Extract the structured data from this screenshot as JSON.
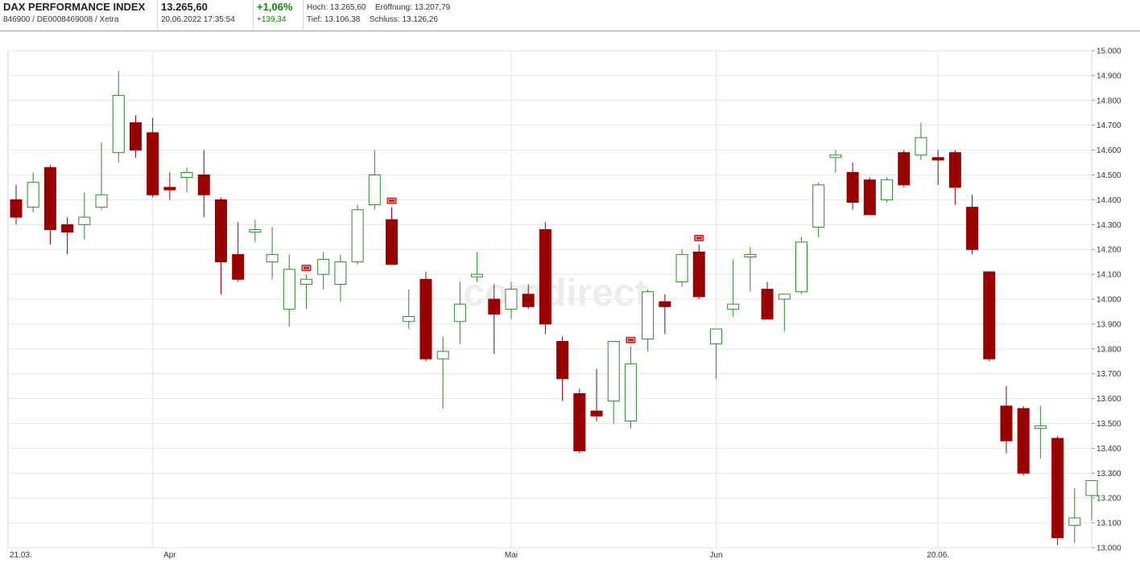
{
  "header": {
    "title": "DAX PERFORMANCE INDEX",
    "identifier": "846900 / DE0008469008 / Xetra",
    "price": "13.265,60",
    "datetime": "20.06.2022 17:35:54",
    "change_pct": "+1,06%",
    "change_abs": "+139,34",
    "high_label": "Hoch:",
    "high_value": "13.265,60",
    "open_label": "Eröffnung:",
    "open_value": "13.207,79",
    "low_label": "Tief:",
    "low_value": "13.106,38",
    "close_label": "Schluss:",
    "close_value": "13.126,26"
  },
  "watermark": "comdirect",
  "chart_data": {
    "type": "candlestick",
    "ylim": [
      13000,
      15000
    ],
    "y_ticks": [
      "13.000",
      "13.100",
      "13.200",
      "13.300",
      "13.400",
      "13.500",
      "13.600",
      "13.700",
      "13.800",
      "13.900",
      "14.000",
      "14.100",
      "14.200",
      "14.300",
      "14.400",
      "14.500",
      "14.600",
      "14.700",
      "14.800",
      "14.900",
      "15.000"
    ],
    "x_ticks": [
      {
        "label": "21.03.",
        "index": 0
      },
      {
        "label": "Apr",
        "index": 9
      },
      {
        "label": "Mai",
        "index": 29
      },
      {
        "label": "Jun",
        "index": 41
      },
      {
        "label": "20.06.",
        "index": 54
      }
    ],
    "grid": true,
    "up_color": "#2a8a2a",
    "down_color": "#990000",
    "event_marker_color": "#cc2222",
    "event_indices": [
      17,
      22,
      36,
      40
    ],
    "candles": [
      {
        "o": 14400,
        "h": 14460,
        "l": 14300,
        "c": 14330
      },
      {
        "o": 14370,
        "h": 14510,
        "l": 14350,
        "c": 14470
      },
      {
        "o": 14530,
        "h": 14540,
        "l": 14220,
        "c": 14280
      },
      {
        "o": 14300,
        "h": 14330,
        "l": 14180,
        "c": 14270
      },
      {
        "o": 14300,
        "h": 14430,
        "l": 14240,
        "c": 14330
      },
      {
        "o": 14370,
        "h": 14630,
        "l": 14360,
        "c": 14420
      },
      {
        "o": 14590,
        "h": 14920,
        "l": 14550,
        "c": 14820
      },
      {
        "o": 14710,
        "h": 14740,
        "l": 14570,
        "c": 14600
      },
      {
        "o": 14670,
        "h": 14730,
        "l": 14410,
        "c": 14420
      },
      {
        "o": 14450,
        "h": 14510,
        "l": 14400,
        "c": 14440
      },
      {
        "o": 14490,
        "h": 14530,
        "l": 14430,
        "c": 14510
      },
      {
        "o": 14500,
        "h": 14600,
        "l": 14330,
        "c": 14420
      },
      {
        "o": 14400,
        "h": 14410,
        "l": 14020,
        "c": 14150
      },
      {
        "o": 14180,
        "h": 14310,
        "l": 14070,
        "c": 14080
      },
      {
        "o": 14270,
        "h": 14320,
        "l": 14230,
        "c": 14280
      },
      {
        "o": 14150,
        "h": 14290,
        "l": 14080,
        "c": 14180
      },
      {
        "o": 13960,
        "h": 14180,
        "l": 13890,
        "c": 14120
      },
      {
        "o": 14060,
        "h": 14100,
        "l": 13960,
        "c": 14080
      },
      {
        "o": 14100,
        "h": 14190,
        "l": 14040,
        "c": 14160
      },
      {
        "o": 14060,
        "h": 14180,
        "l": 13990,
        "c": 14150
      },
      {
        "o": 14150,
        "h": 14380,
        "l": 14140,
        "c": 14360
      },
      {
        "o": 14380,
        "h": 14600,
        "l": 14360,
        "c": 14500
      },
      {
        "o": 14320,
        "h": 14370,
        "l": 14140,
        "c": 14140
      },
      {
        "o": 13910,
        "h": 14040,
        "l": 13880,
        "c": 13930
      },
      {
        "o": 14080,
        "h": 14110,
        "l": 13750,
        "c": 13760
      },
      {
        "o": 13760,
        "h": 13850,
        "l": 13560,
        "c": 13790
      },
      {
        "o": 13910,
        "h": 14070,
        "l": 13820,
        "c": 13980
      },
      {
        "o": 14090,
        "h": 14190,
        "l": 14070,
        "c": 14100
      },
      {
        "o": 14000,
        "h": 14060,
        "l": 13780,
        "c": 13940
      },
      {
        "o": 13960,
        "h": 14070,
        "l": 13920,
        "c": 14040
      },
      {
        "o": 14020,
        "h": 14060,
        "l": 13960,
        "c": 13970
      },
      {
        "o": 14280,
        "h": 14310,
        "l": 13860,
        "c": 13900
      },
      {
        "o": 13830,
        "h": 13850,
        "l": 13590,
        "c": 13680
      },
      {
        "o": 13620,
        "h": 13640,
        "l": 13380,
        "c": 13390
      },
      {
        "o": 13550,
        "h": 13720,
        "l": 13510,
        "c": 13530
      },
      {
        "o": 13590,
        "h": 13830,
        "l": 13500,
        "c": 13830
      },
      {
        "o": 13510,
        "h": 13810,
        "l": 13480,
        "c": 13740
      },
      {
        "o": 13840,
        "h": 14040,
        "l": 13790,
        "c": 14030
      },
      {
        "o": 13990,
        "h": 14020,
        "l": 13860,
        "c": 13970
      },
      {
        "o": 14070,
        "h": 14200,
        "l": 14050,
        "c": 14180
      },
      {
        "o": 14190,
        "h": 14220,
        "l": 14000,
        "c": 14010
      },
      {
        "o": 13820,
        "h": 13880,
        "l": 13680,
        "c": 13880
      },
      {
        "o": 13960,
        "h": 14160,
        "l": 13930,
        "c": 13980
      },
      {
        "o": 14170,
        "h": 14210,
        "l": 14030,
        "c": 14180
      },
      {
        "o": 14040,
        "h": 14070,
        "l": 13920,
        "c": 13920
      },
      {
        "o": 14000,
        "h": 14020,
        "l": 13870,
        "c": 14020
      },
      {
        "o": 14030,
        "h": 14250,
        "l": 14020,
        "c": 14230
      },
      {
        "o": 14290,
        "h": 14470,
        "l": 14250,
        "c": 14460
      },
      {
        "o": 14570,
        "h": 14600,
        "l": 14510,
        "c": 14580
      },
      {
        "o": 14510,
        "h": 14550,
        "l": 14360,
        "c": 14390
      },
      {
        "o": 14480,
        "h": 14490,
        "l": 14340,
        "c": 14340
      },
      {
        "o": 14400,
        "h": 14490,
        "l": 14390,
        "c": 14480
      },
      {
        "o": 14590,
        "h": 14600,
        "l": 14450,
        "c": 14460
      },
      {
        "o": 14580,
        "h": 14710,
        "l": 14560,
        "c": 14650
      },
      {
        "o": 14570,
        "h": 14600,
        "l": 14460,
        "c": 14560
      },
      {
        "o": 14590,
        "h": 14600,
        "l": 14380,
        "c": 14450
      },
      {
        "o": 14370,
        "h": 14420,
        "l": 14180,
        "c": 14200
      },
      {
        "o": 14110,
        "h": 14110,
        "l": 13750,
        "c": 13760
      },
      {
        "o": 13570,
        "h": 13650,
        "l": 13380,
        "c": 13430
      },
      {
        "o": 13560,
        "h": 13570,
        "l": 13290,
        "c": 13300
      },
      {
        "o": 13480,
        "h": 13570,
        "l": 13360,
        "c": 13490
      },
      {
        "o": 13440,
        "h": 13450,
        "l": 13010,
        "c": 13040
      },
      {
        "o": 13090,
        "h": 13240,
        "l": 13020,
        "c": 13120
      },
      {
        "o": 13210,
        "h": 13270,
        "l": 13110,
        "c": 13270
      }
    ]
  }
}
